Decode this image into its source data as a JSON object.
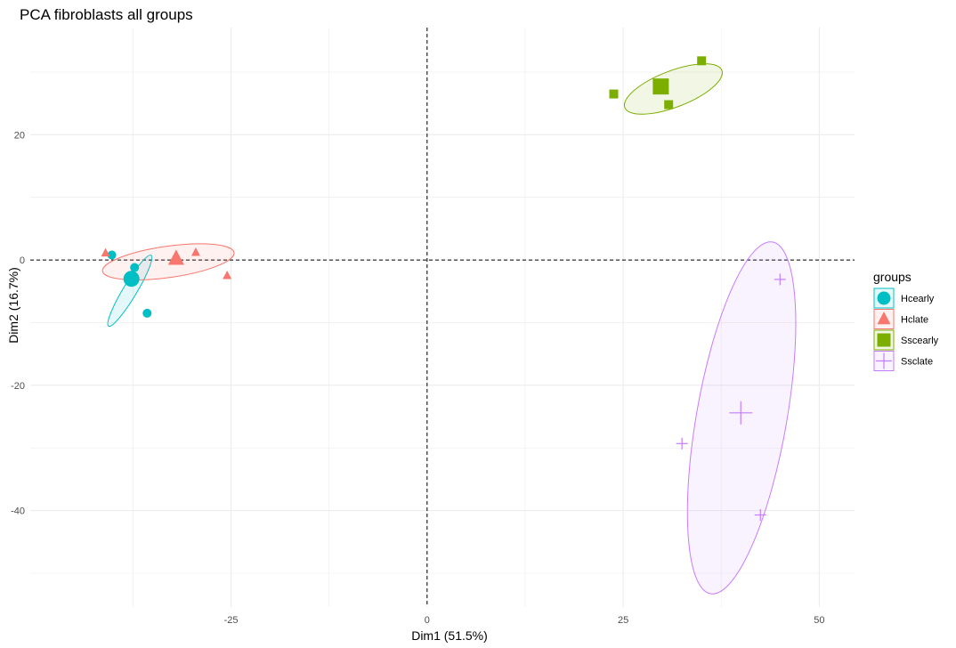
{
  "chart_data": {
    "type": "scatter",
    "title": "PCA fibroblasts all groups",
    "xlabel": "Dim1 (51.5%)",
    "ylabel": "Dim2 (16.7%)",
    "xlim": [
      -50.6,
      54.5
    ],
    "ylim": [
      -55.4,
      37.1
    ],
    "x_ticks": [
      -25,
      0,
      25,
      50
    ],
    "x_tick_labels": [
      "-25",
      "0",
      "25",
      "50"
    ],
    "y_ticks": [
      -40,
      -20,
      0,
      20
    ],
    "y_tick_labels": [
      "-40",
      "-20",
      "0",
      "20"
    ],
    "grid": true,
    "reference_lines": {
      "x": 0,
      "y": 0,
      "style": "dashed"
    },
    "legend": {
      "title": "groups",
      "placement": "right"
    },
    "series": [
      {
        "name": "Hcearly",
        "shape": "circle",
        "color": "#00BFC4",
        "points": [
          [
            -40.2,
            0.8
          ],
          [
            -37.3,
            -1.2
          ],
          [
            -35.7,
            -8.5
          ]
        ],
        "centroid": [
          -37.7,
          -3.0
        ],
        "ellipse": {
          "cx": -37.9,
          "cy": -4.9,
          "rx": 6.6,
          "ry": 1.1,
          "angle_deg": 59
        }
      },
      {
        "name": "Hclate",
        "shape": "triangle",
        "color": "#F8766D",
        "points": [
          [
            -41.0,
            1.1
          ],
          [
            -29.5,
            1.2
          ],
          [
            -25.5,
            -2.5
          ]
        ],
        "centroid": [
          -32.0,
          0.2
        ],
        "ellipse": {
          "cx": -33.0,
          "cy": -0.3,
          "rx": 10.6,
          "ry": 2.5,
          "angle_deg": 8
        }
      },
      {
        "name": "Sscearly",
        "shape": "square",
        "color": "#7CAE00",
        "points": [
          [
            23.8,
            26.5
          ],
          [
            30.8,
            24.8
          ],
          [
            35.0,
            31.8
          ]
        ],
        "centroid": [
          29.8,
          27.7
        ],
        "ellipse": {
          "cx": 31.4,
          "cy": 27.3,
          "rx": 8.3,
          "ry": 2.9,
          "angle_deg": 21
        }
      },
      {
        "name": "Ssclate",
        "shape": "plus",
        "color": "#C77CFF",
        "points": [
          [
            45.0,
            -3.1
          ],
          [
            32.5,
            -29.3
          ],
          [
            42.5,
            -40.7
          ]
        ],
        "centroid": [
          40.0,
          -24.4
        ],
        "ellipse": {
          "cx": 40.1,
          "cy": -25.2,
          "rx": 28.5,
          "ry": 7.2,
          "angle_deg": 80
        }
      }
    ]
  }
}
